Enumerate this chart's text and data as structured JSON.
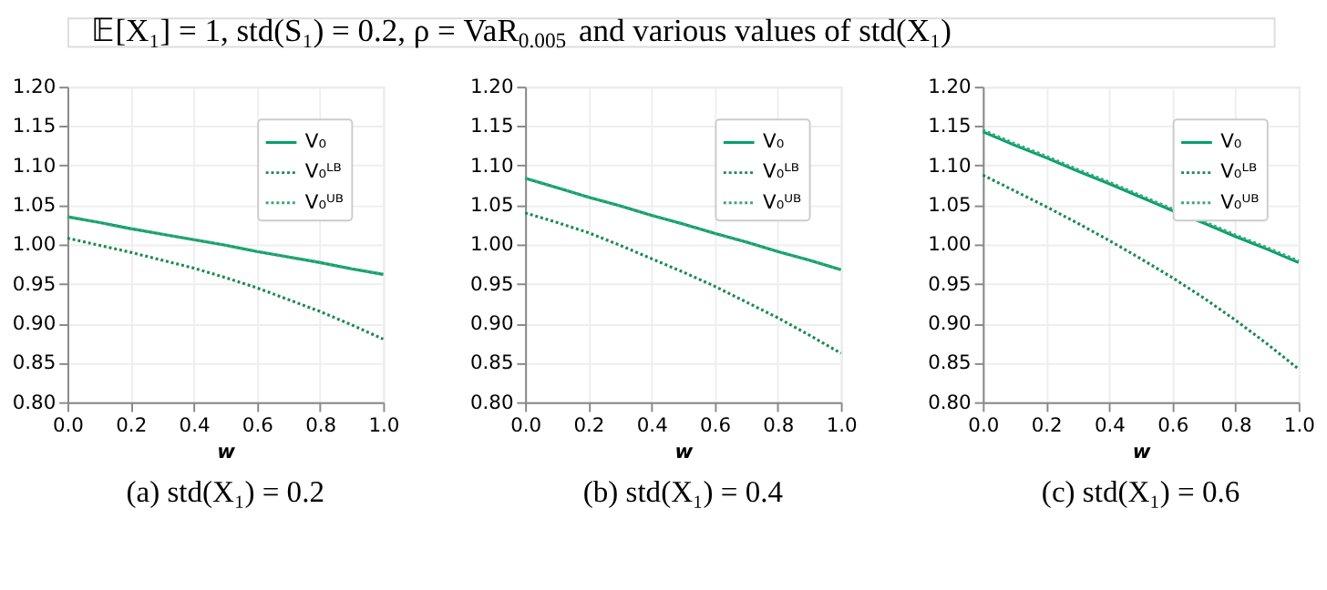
{
  "chart_data": [
    {
      "type": "line",
      "title": "(a) std(X₁) = 0.2",
      "annotations": [
        "𝔼[X₁] = 1, std(S₁) = 0.2, ρ = VaR$_{0.005}$ and various values of std(X₁)"
      ],
      "xlabel": "w",
      "x": [
        0,
        0.1,
        0.2,
        0.3,
        0.4,
        0.5,
        0.6,
        0.7,
        0.8,
        0.9,
        1.0
      ],
      "xlim": [
        0,
        1
      ],
      "xticks": [
        {
          "value": 0,
          "label": "0.0"
        },
        {
          "value": 0.2,
          "label": "0.2"
        },
        {
          "value": 0.4,
          "label": "0.4"
        },
        {
          "value": 0.6,
          "label": "0.6"
        },
        {
          "value": 0.8,
          "label": "0.8"
        },
        {
          "value": 1,
          "label": "1.0"
        }
      ],
      "ylim": [
        0.8,
        1.2
      ],
      "yticks": [
        {
          "value": 0.8,
          "label": "0.80"
        },
        {
          "value": 0.85,
          "label": "0.85"
        },
        {
          "value": 0.9,
          "label": "0.90"
        },
        {
          "value": 0.95,
          "label": "0.95"
        },
        {
          "value": 1.0,
          "label": "1.00"
        },
        {
          "value": 1.05,
          "label": "1.05"
        },
        {
          "value": 1.1,
          "label": "1.10"
        },
        {
          "value": 1.15,
          "label": "1.15"
        },
        {
          "value": 1.2,
          "label": "1.20"
        }
      ],
      "grid": true,
      "legend": "top right",
      "series": [
        {
          "name": "V₀",
          "color": "#00a06a",
          "line_style": "solid",
          "values": [
            1.035,
            1.028,
            1.02,
            1.013,
            1.006,
            0.999,
            0.991,
            0.984,
            0.977,
            0.969,
            0.962
          ]
        },
        {
          "name": "V₀ᴸᴮ",
          "color": "#1a8a50",
          "line_style": "dotted",
          "values": [
            1.008,
            0.999,
            0.99,
            0.98,
            0.97,
            0.958,
            0.945,
            0.93,
            0.915,
            0.898,
            0.88
          ]
        },
        {
          "name": "V₀ᵁᴮ",
          "color": "#3aa878",
          "line_style": "dotted",
          "values": [
            1.035,
            1.028,
            1.02,
            1.013,
            1.006,
            0.999,
            0.991,
            0.984,
            0.977,
            0.969,
            0.962
          ]
        }
      ]
    },
    {
      "type": "line",
      "title": "(b) std(X₁) = 0.4",
      "xlabel": "w",
      "x": [
        0,
        0.1,
        0.2,
        0.3,
        0.4,
        0.5,
        0.6,
        0.7,
        0.8,
        0.9,
        1.0
      ],
      "xlim": [
        0,
        1
      ],
      "xticks": [
        {
          "value": 0,
          "label": "0.0"
        },
        {
          "value": 0.2,
          "label": "0.2"
        },
        {
          "value": 0.4,
          "label": "0.4"
        },
        {
          "value": 0.6,
          "label": "0.6"
        },
        {
          "value": 0.8,
          "label": "0.8"
        },
        {
          "value": 1,
          "label": "1.0"
        }
      ],
      "ylim": [
        0.8,
        1.2
      ],
      "yticks": [
        {
          "value": 0.8,
          "label": "0.80"
        },
        {
          "value": 0.85,
          "label": "0.85"
        },
        {
          "value": 0.9,
          "label": "0.90"
        },
        {
          "value": 0.95,
          "label": "0.95"
        },
        {
          "value": 1.0,
          "label": "1.00"
        },
        {
          "value": 1.05,
          "label": "1.05"
        },
        {
          "value": 1.1,
          "label": "1.10"
        },
        {
          "value": 1.15,
          "label": "1.15"
        },
        {
          "value": 1.2,
          "label": "1.20"
        }
      ],
      "grid": true,
      "legend": "top right",
      "series": [
        {
          "name": "V₀",
          "color": "#00a06a",
          "line_style": "solid",
          "values": [
            1.084,
            1.072,
            1.06,
            1.049,
            1.037,
            1.026,
            1.014,
            1.003,
            0.991,
            0.98,
            0.968
          ]
        },
        {
          "name": "V₀ᴸᴮ",
          "color": "#1a8a50",
          "line_style": "dotted",
          "values": [
            1.04,
            1.028,
            1.015,
            0.999,
            0.982,
            0.965,
            0.947,
            0.927,
            0.907,
            0.885,
            0.862
          ]
        },
        {
          "name": "V₀ᵁᴮ",
          "color": "#3aa878",
          "line_style": "dotted",
          "values": [
            1.084,
            1.072,
            1.06,
            1.049,
            1.037,
            1.026,
            1.014,
            1.003,
            0.991,
            0.98,
            0.968
          ]
        }
      ]
    },
    {
      "type": "line",
      "title": "(c) std(X₁) = 0.6",
      "xlabel": "w",
      "x": [
        0,
        0.1,
        0.2,
        0.3,
        0.4,
        0.5,
        0.6,
        0.7,
        0.8,
        0.9,
        1.0
      ],
      "xlim": [
        0,
        1
      ],
      "xticks": [
        {
          "value": 0,
          "label": "0.0"
        },
        {
          "value": 0.2,
          "label": "0.2"
        },
        {
          "value": 0.4,
          "label": "0.4"
        },
        {
          "value": 0.6,
          "label": "0.6"
        },
        {
          "value": 0.8,
          "label": "0.8"
        },
        {
          "value": 1,
          "label": "1.0"
        }
      ],
      "ylim": [
        0.8,
        1.2
      ],
      "yticks": [
        {
          "value": 0.8,
          "label": "0.80"
        },
        {
          "value": 0.85,
          "label": "0.85"
        },
        {
          "value": 0.9,
          "label": "0.90"
        },
        {
          "value": 0.95,
          "label": "0.95"
        },
        {
          "value": 1.0,
          "label": "1.00"
        },
        {
          "value": 1.05,
          "label": "1.05"
        },
        {
          "value": 1.1,
          "label": "1.10"
        },
        {
          "value": 1.15,
          "label": "1.15"
        },
        {
          "value": 1.2,
          "label": "1.20"
        }
      ],
      "grid": true,
      "legend": "top right",
      "series": [
        {
          "name": "V₀",
          "color": "#00a06a",
          "line_style": "solid",
          "values": [
            1.143,
            1.126,
            1.11,
            1.093,
            1.077,
            1.06,
            1.043,
            1.027,
            1.01,
            0.994,
            0.977
          ]
        },
        {
          "name": "V₀ᴸᴮ",
          "color": "#1a8a50",
          "line_style": "dotted",
          "values": [
            1.088,
            1.068,
            1.048,
            1.027,
            1.005,
            0.982,
            0.958,
            0.932,
            0.904,
            0.874,
            0.842
          ]
        },
        {
          "name": "V₀ᵁᴮ",
          "color": "#3aa878",
          "line_style": "dotted",
          "values": [
            1.145,
            1.128,
            1.112,
            1.095,
            1.079,
            1.062,
            1.045,
            1.029,
            1.012,
            0.996,
            0.979
          ]
        }
      ]
    }
  ]
}
